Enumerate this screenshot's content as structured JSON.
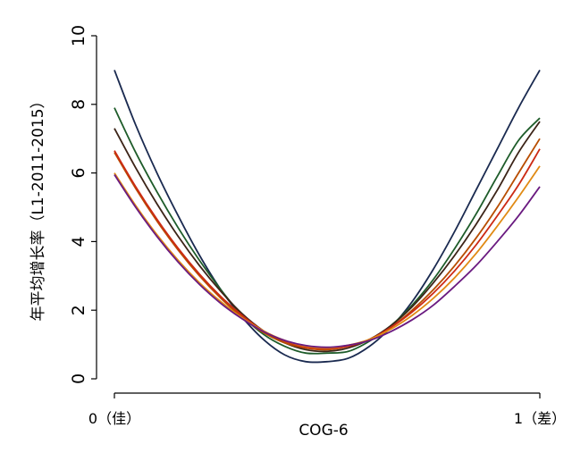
{
  "chart_data": {
    "type": "line",
    "title": "",
    "xlabel": "COG-6",
    "ylabel": "年平均增长率（L1-2011-2015）",
    "xlim": [
      0,
      1
    ],
    "ylim": [
      0,
      10
    ],
    "y_ticks": [
      "0",
      "2",
      "4",
      "6",
      "8",
      "10"
    ],
    "x_ticks": [
      {
        "value": 0,
        "label": "0（佳）"
      },
      {
        "value": 1,
        "label": "1（差）"
      }
    ],
    "grid": false,
    "x": [
      0,
      0.05,
      0.1,
      0.15,
      0.2,
      0.25,
      0.3,
      0.35,
      0.4,
      0.45,
      0.5,
      0.55,
      0.6,
      0.65,
      0.7,
      0.75,
      0.8,
      0.85,
      0.9,
      0.95,
      1.0
    ],
    "series": [
      {
        "color": "#1a2a50",
        "values": [
          9.0,
          7.4,
          6.0,
          4.75,
          3.6,
          2.6,
          1.8,
          1.15,
          0.7,
          0.5,
          0.5,
          0.6,
          0.95,
          1.5,
          2.25,
          3.2,
          4.3,
          5.5,
          6.7,
          7.9,
          9.0
        ]
      },
      {
        "color": "#1e5c2a",
        "values": [
          7.9,
          6.6,
          5.45,
          4.4,
          3.45,
          2.6,
          1.85,
          1.3,
          0.95,
          0.75,
          0.75,
          0.8,
          1.1,
          1.55,
          2.15,
          2.9,
          3.8,
          4.8,
          5.9,
          6.95,
          7.6
        ]
      },
      {
        "color": "#3c2418",
        "values": [
          7.3,
          6.15,
          5.1,
          4.15,
          3.3,
          2.55,
          1.9,
          1.4,
          1.05,
          0.85,
          0.8,
          0.9,
          1.15,
          1.55,
          2.1,
          2.8,
          3.6,
          4.5,
          5.5,
          6.6,
          7.5
        ]
      },
      {
        "color": "#b84d00",
        "values": [
          6.6,
          5.55,
          4.6,
          3.75,
          3.0,
          2.35,
          1.8,
          1.35,
          1.05,
          0.9,
          0.85,
          0.95,
          1.15,
          1.5,
          2.0,
          2.6,
          3.3,
          4.1,
          5.0,
          6.0,
          7.0
        ]
      },
      {
        "color": "#cc2a14",
        "values": [
          6.65,
          5.6,
          4.65,
          3.8,
          3.05,
          2.4,
          1.85,
          1.4,
          1.1,
          0.92,
          0.88,
          0.95,
          1.15,
          1.5,
          1.95,
          2.5,
          3.15,
          3.9,
          4.75,
          5.65,
          6.7
        ]
      },
      {
        "color": "#e08a14",
        "values": [
          6.0,
          5.05,
          4.2,
          3.45,
          2.8,
          2.25,
          1.78,
          1.4,
          1.12,
          0.95,
          0.9,
          0.98,
          1.15,
          1.45,
          1.85,
          2.35,
          2.95,
          3.65,
          4.45,
          5.3,
          6.2
        ]
      },
      {
        "color": "#6a1a80",
        "values": [
          5.95,
          5.0,
          4.15,
          3.4,
          2.75,
          2.2,
          1.75,
          1.38,
          1.12,
          0.97,
          0.92,
          0.98,
          1.12,
          1.38,
          1.72,
          2.15,
          2.7,
          3.3,
          4.0,
          4.75,
          5.6
        ]
      }
    ]
  }
}
